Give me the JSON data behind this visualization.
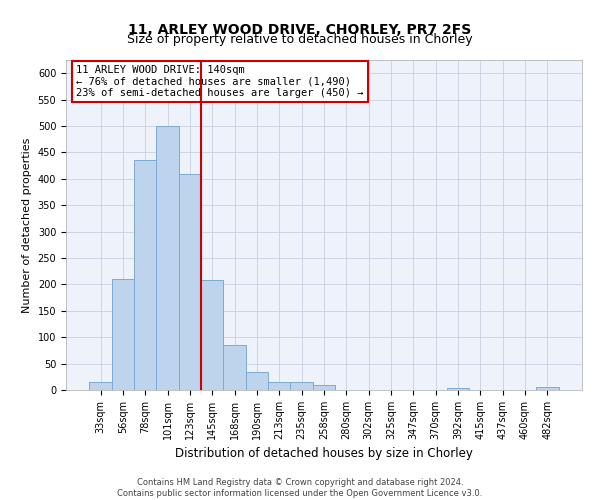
{
  "title": "11, ARLEY WOOD DRIVE, CHORLEY, PR7 2FS",
  "subtitle": "Size of property relative to detached houses in Chorley",
  "xlabel": "Distribution of detached houses by size in Chorley",
  "ylabel": "Number of detached properties",
  "categories": [
    "33sqm",
    "56sqm",
    "78sqm",
    "101sqm",
    "123sqm",
    "145sqm",
    "168sqm",
    "190sqm",
    "213sqm",
    "235sqm",
    "258sqm",
    "280sqm",
    "302sqm",
    "325sqm",
    "347sqm",
    "370sqm",
    "392sqm",
    "415sqm",
    "437sqm",
    "460sqm",
    "482sqm"
  ],
  "values": [
    15,
    210,
    435,
    500,
    410,
    208,
    85,
    35,
    16,
    16,
    10,
    0,
    0,
    0,
    0,
    0,
    3,
    0,
    0,
    0,
    5
  ],
  "bar_color": "#bed3ec",
  "bar_edge_color": "#7baad4",
  "vline_x": 5,
  "vline_color": "#cc0000",
  "annotation_text": "11 ARLEY WOOD DRIVE: 140sqm\n← 76% of detached houses are smaller (1,490)\n23% of semi-detached houses are larger (450) →",
  "annotation_box_color": "#ffffff",
  "annotation_box_edge_color": "#cc0000",
  "ylim": [
    0,
    625
  ],
  "yticks": [
    0,
    50,
    100,
    150,
    200,
    250,
    300,
    350,
    400,
    450,
    500,
    550,
    600
  ],
  "background_color": "#eef2fa",
  "grid_color": "#c8d0e0",
  "footer_text": "Contains HM Land Registry data © Crown copyright and database right 2024.\nContains public sector information licensed under the Open Government Licence v3.0.",
  "title_fontsize": 10,
  "subtitle_fontsize": 9,
  "xlabel_fontsize": 8.5,
  "ylabel_fontsize": 8,
  "tick_fontsize": 7,
  "annotation_fontsize": 7.5,
  "footer_fontsize": 6
}
